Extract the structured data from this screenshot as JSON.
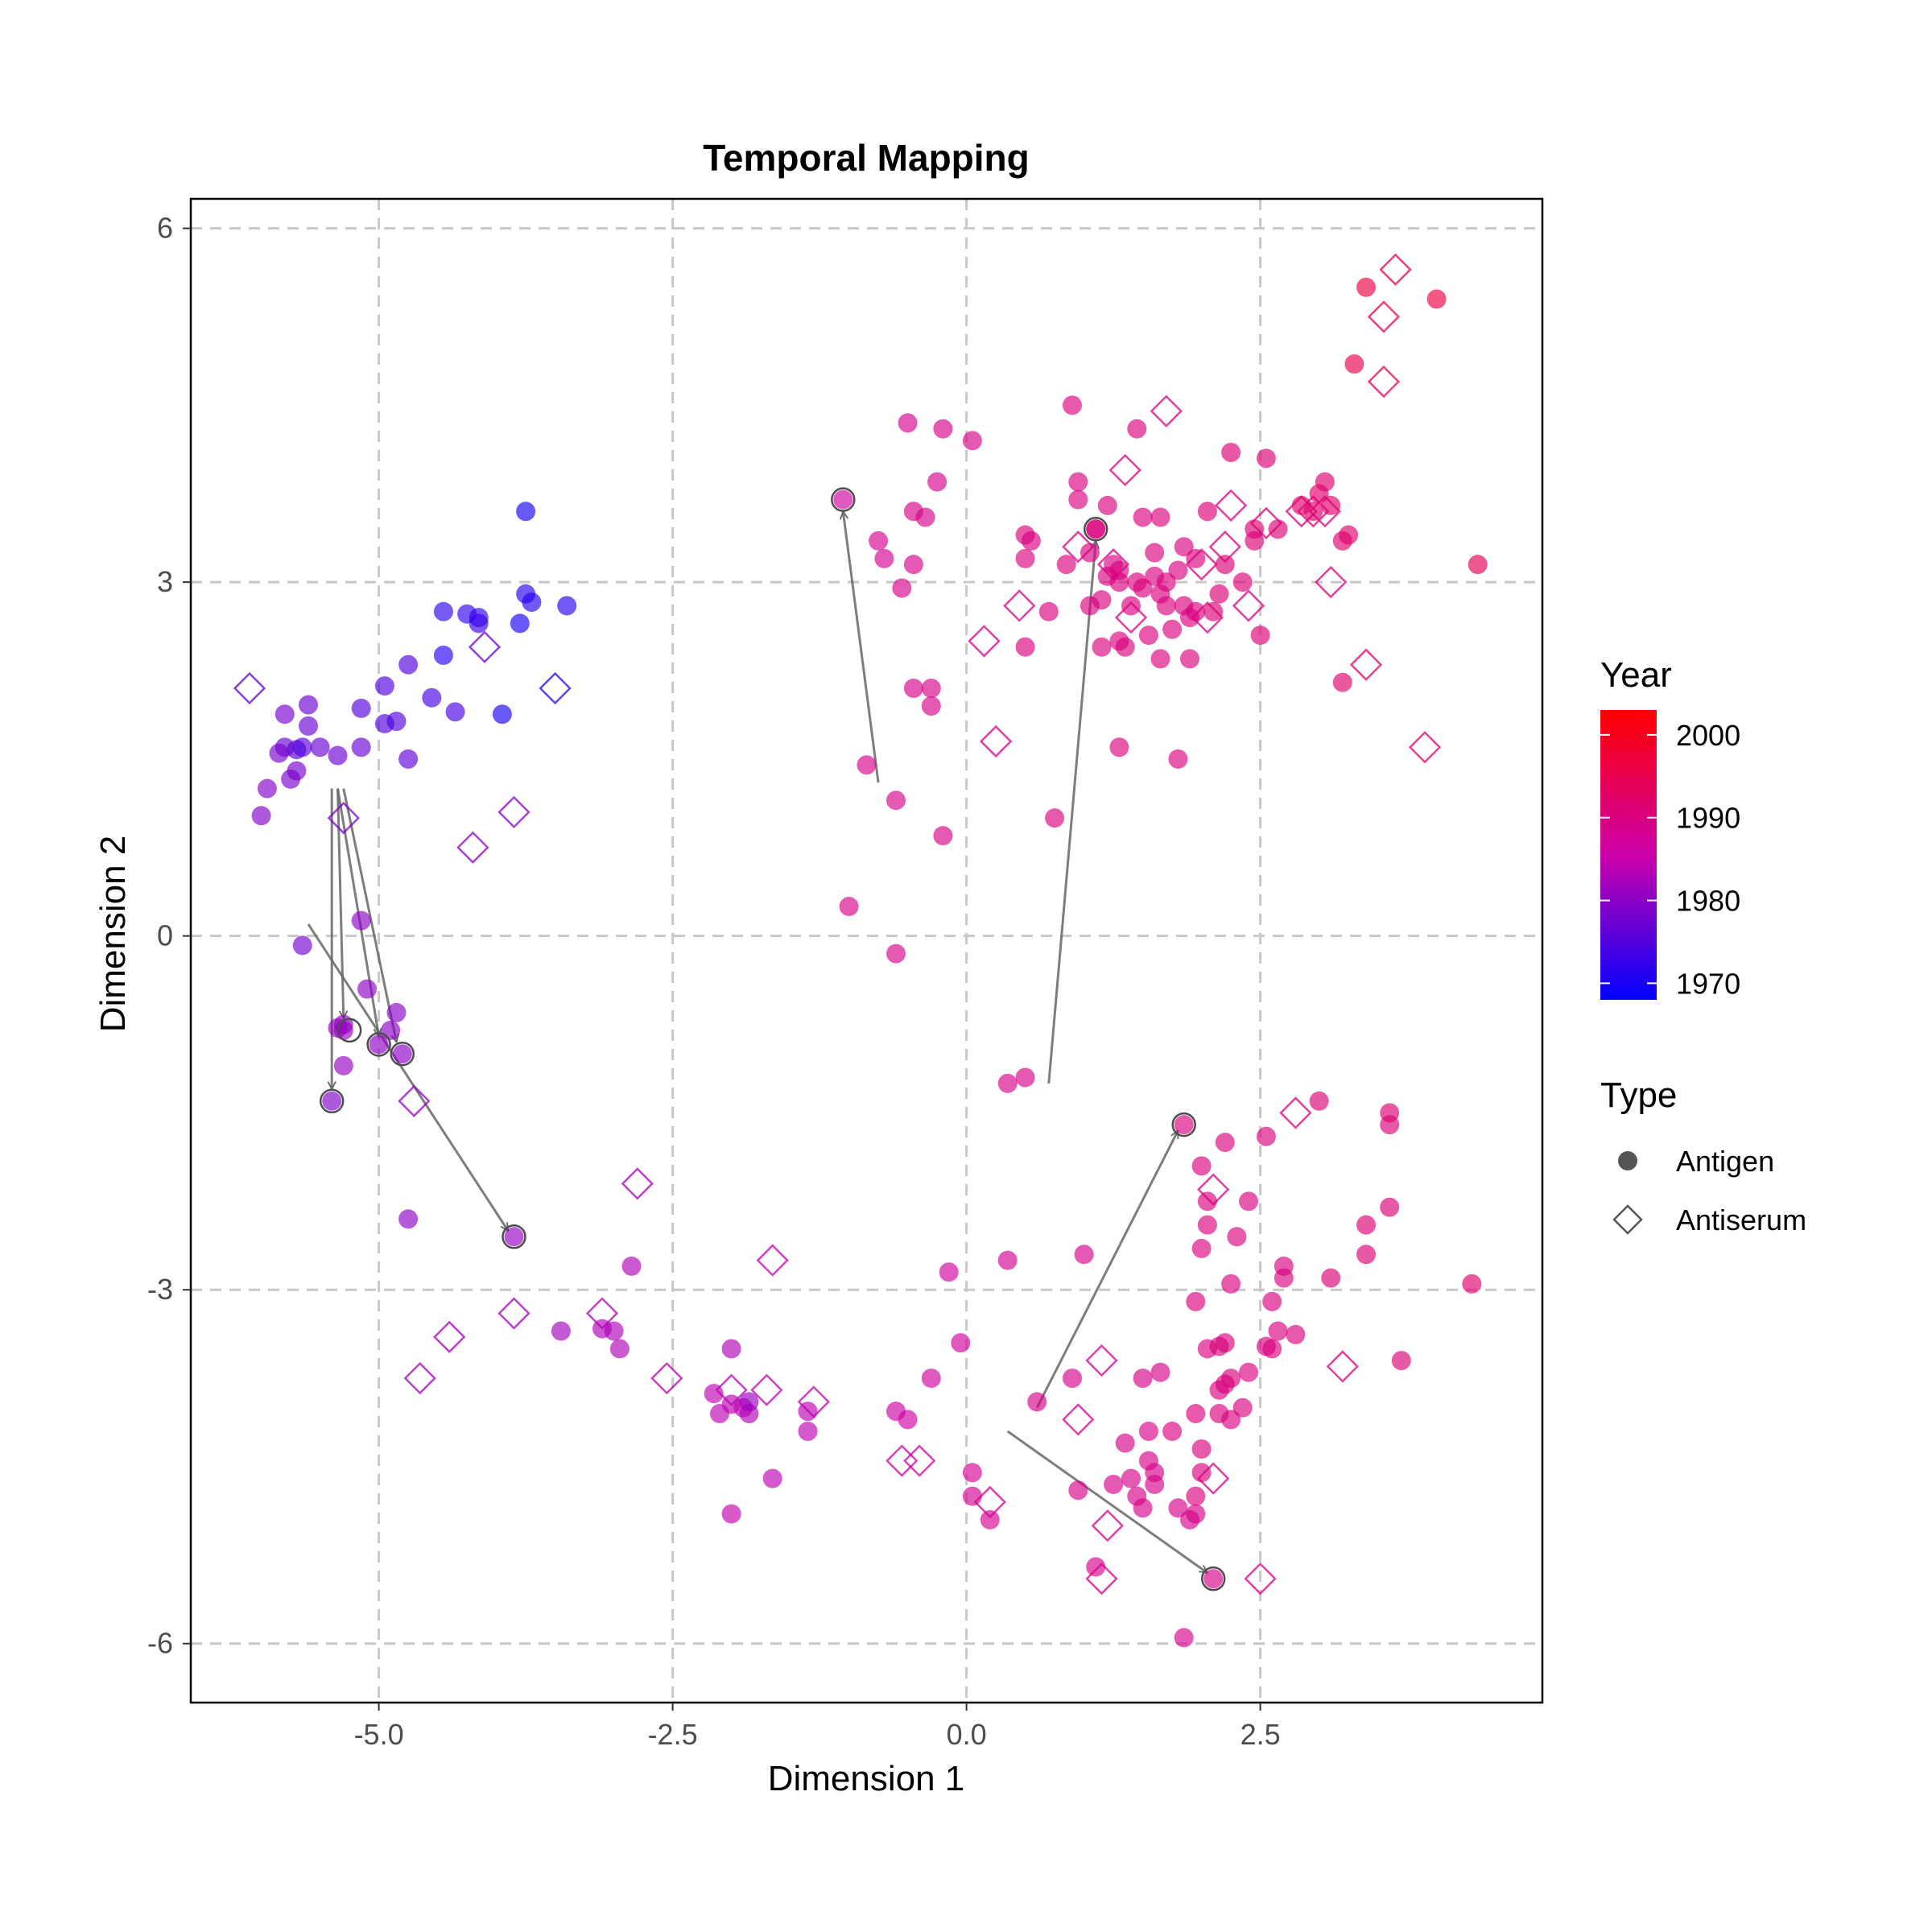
{
  "chart_data": {
    "type": "scatter",
    "title": "Temporal Mapping",
    "xlabel": "Dimension 1",
    "ylabel": "Dimension 2",
    "xlim": [
      -6.6,
      4.9
    ],
    "ylim": [
      -6.5,
      6.25
    ],
    "x_ticks": [
      -5.0,
      -2.5,
      0.0,
      2.5
    ],
    "x_tick_labels": [
      "-5.0",
      "-2.5",
      "0.0",
      "2.5"
    ],
    "y_ticks": [
      -6,
      -3,
      0,
      3,
      6
    ],
    "y_tick_labels": [
      "-6",
      "-3",
      "0",
      "3",
      "6"
    ],
    "grid": true,
    "grid_style": "dashed",
    "legend_position": "right",
    "color_legend": {
      "title": "Year",
      "min_year": 1968,
      "max_year": 2003,
      "ticks": [
        2000,
        1990,
        1980,
        1970
      ],
      "tick_labels": [
        "2000",
        "1990",
        "1980",
        "1970"
      ],
      "low_color": "#0000ff",
      "mid_color": "#cc00aa",
      "high_color": "#ff0000"
    },
    "shape_legend": {
      "title": "Type",
      "items": [
        {
          "label": "Antigen",
          "shape": "circle"
        },
        {
          "label": "Antiserum",
          "shape": "diamond"
        }
      ]
    },
    "antigens": [
      [
        -3.75,
        3.6,
        1970
      ],
      [
        -3.8,
        2.65,
        1970
      ],
      [
        -3.75,
        2.9,
        1971
      ],
      [
        -3.7,
        2.83,
        1971
      ],
      [
        -3.4,
        2.8,
        1971
      ],
      [
        -4.45,
        2.75,
        1972
      ],
      [
        -4.25,
        2.73,
        1972
      ],
      [
        -4.15,
        2.7,
        1972
      ],
      [
        -4.15,
        2.65,
        1973
      ],
      [
        -4.45,
        2.38,
        1971
      ],
      [
        -3.95,
        1.88,
        1970
      ],
      [
        -4.55,
        2.02,
        1974
      ],
      [
        -4.35,
        1.9,
        1974
      ],
      [
        -4.95,
        2.12,
        1975
      ],
      [
        -4.75,
        2.3,
        1975
      ],
      [
        -5.15,
        1.93,
        1975
      ],
      [
        -4.95,
        1.8,
        1975
      ],
      [
        -4.85,
        1.82,
        1975
      ],
      [
        -4.75,
        1.5,
        1976
      ],
      [
        -5.15,
        1.6,
        1977
      ],
      [
        -5.35,
        1.53,
        1977
      ],
      [
        -5.5,
        1.6,
        1977
      ],
      [
        -5.65,
        1.6,
        1976
      ],
      [
        -5.7,
        1.58,
        1975
      ],
      [
        -5.6,
        1.78,
        1977
      ],
      [
        -5.6,
        1.96,
        1977
      ],
      [
        -5.8,
        1.6,
        1977
      ],
      [
        -5.75,
        1.33,
        1978
      ],
      [
        -5.7,
        1.4,
        1978
      ],
      [
        -5.85,
        1.55,
        1978
      ],
      [
        -5.8,
        1.88,
        1978
      ],
      [
        -5.95,
        1.25,
        1979
      ],
      [
        -6.0,
        1.02,
        1979
      ],
      [
        -5.65,
        -0.08,
        1978
      ],
      [
        -5.15,
        0.13,
        1980
      ],
      [
        -5.1,
        -0.45,
        1980
      ],
      [
        -4.85,
        -0.65,
        1980
      ],
      [
        -4.9,
        -0.8,
        1980
      ],
      [
        -5.3,
        -0.75,
        1980
      ],
      [
        -5.3,
        -1.1,
        1981
      ],
      [
        -5.3,
        -0.8,
        1981
      ],
      [
        -5.35,
        -0.78,
        1981
      ],
      [
        -5.0,
        -0.92,
        1980
      ],
      [
        -4.8,
        -1.0,
        1980
      ],
      [
        -5.4,
        -1.4,
        1979
      ],
      [
        -4.75,
        -2.4,
        1980
      ],
      [
        -3.85,
        -2.55,
        1981
      ],
      [
        -3.45,
        -3.35,
        1982
      ],
      [
        -3.1,
        -3.33,
        1983
      ],
      [
        -3.0,
        -3.35,
        1983
      ],
      [
        -2.95,
        -3.5,
        1983
      ],
      [
        -2.85,
        -2.8,
        1983
      ],
      [
        -2.0,
        -3.5,
        1983
      ],
      [
        -2.15,
        -3.88,
        1984
      ],
      [
        -2.1,
        -4.05,
        1984
      ],
      [
        -2.0,
        -3.97,
        1984
      ],
      [
        -1.9,
        -4.0,
        1984
      ],
      [
        -1.85,
        -4.05,
        1983
      ],
      [
        -1.85,
        -3.95,
        1981
      ],
      [
        -1.35,
        -4.03,
        1984
      ],
      [
        -1.35,
        -4.2,
        1984
      ],
      [
        -1.65,
        -4.6,
        1984
      ],
      [
        -2.0,
        -4.9,
        1985
      ],
      [
        -0.6,
        -4.03,
        1986
      ],
      [
        -0.5,
        -4.1,
        1986
      ],
      [
        -0.3,
        -3.75,
        1987
      ],
      [
        -0.05,
        -3.45,
        1987
      ],
      [
        -0.15,
        -2.85,
        1987
      ],
      [
        0.05,
        -4.55,
        1988
      ],
      [
        0.05,
        -4.75,
        1988
      ],
      [
        0.2,
        -4.95,
        1988
      ],
      [
        0.35,
        -2.75,
        1988
      ],
      [
        0.6,
        -3.95,
        1989
      ],
      [
        1.0,
        -2.7,
        1989
      ],
      [
        0.9,
        -3.75,
        1989
      ],
      [
        0.95,
        -4.7,
        1989
      ],
      [
        1.1,
        -5.35,
        1989
      ],
      [
        1.25,
        -4.65,
        1989
      ],
      [
        1.35,
        -4.3,
        1989
      ],
      [
        1.4,
        -4.6,
        1989
      ],
      [
        1.45,
        -4.75,
        1989
      ],
      [
        1.5,
        -4.85,
        1989
      ],
      [
        1.55,
        -4.45,
        1989
      ],
      [
        1.55,
        -4.2,
        1989
      ],
      [
        1.6,
        -4.65,
        1989
      ],
      [
        1.6,
        -4.55,
        1989
      ],
      [
        1.5,
        -3.75,
        1989
      ],
      [
        1.65,
        -3.7,
        1989
      ],
      [
        1.8,
        -4.85,
        1989
      ],
      [
        1.9,
        -4.95,
        1989
      ],
      [
        1.95,
        -4.9,
        1989
      ],
      [
        1.75,
        -4.2,
        1990
      ],
      [
        1.95,
        -4.75,
        1990
      ],
      [
        2.0,
        -4.55,
        1990
      ],
      [
        2.0,
        -4.35,
        1990
      ],
      [
        1.95,
        -4.05,
        1990
      ],
      [
        1.95,
        -3.1,
        1990
      ],
      [
        2.0,
        -2.65,
        1990
      ],
      [
        2.05,
        -2.45,
        1990
      ],
      [
        2.05,
        -2.25,
        1990
      ],
      [
        2.0,
        -1.95,
        1990
      ],
      [
        2.05,
        -3.5,
        1990
      ],
      [
        2.15,
        -3.48,
        1990
      ],
      [
        2.2,
        -3.45,
        1990
      ],
      [
        2.15,
        -3.85,
        1990
      ],
      [
        2.2,
        -3.8,
        1990
      ],
      [
        2.25,
        -3.75,
        1990
      ],
      [
        2.15,
        -4.05,
        1990
      ],
      [
        2.25,
        -4.1,
        1990
      ],
      [
        2.35,
        -4.0,
        1990
      ],
      [
        2.4,
        -3.7,
        1990
      ],
      [
        2.25,
        -2.95,
        1990
      ],
      [
        2.3,
        -2.55,
        1990
      ],
      [
        2.4,
        -2.25,
        1990
      ],
      [
        2.2,
        -1.75,
        1990
      ],
      [
        2.55,
        -3.48,
        1990
      ],
      [
        2.6,
        -3.5,
        1990
      ],
      [
        2.6,
        -3.1,
        1990
      ],
      [
        2.65,
        -3.35,
        1990
      ],
      [
        2.7,
        -2.8,
        1990
      ],
      [
        2.7,
        -2.9,
        1990
      ],
      [
        2.8,
        -3.38,
        1990
      ],
      [
        2.55,
        -1.7,
        1990
      ],
      [
        3.0,
        -1.4,
        1991
      ],
      [
        3.1,
        -2.9,
        1991
      ],
      [
        3.4,
        -2.45,
        1991
      ],
      [
        3.4,
        -2.7,
        1991
      ],
      [
        3.6,
        -1.5,
        1991
      ],
      [
        3.6,
        -1.6,
        1991
      ],
      [
        3.6,
        -2.3,
        1991
      ],
      [
        3.7,
        -3.6,
        1991
      ],
      [
        4.3,
        -2.95,
        1992
      ],
      [
        1.85,
        -5.95,
        1989
      ],
      [
        2.1,
        -5.45,
        1989
      ],
      [
        1.85,
        -1.6,
        1990
      ],
      [
        -1.05,
        3.7,
        1987
      ],
      [
        -0.75,
        3.35,
        1988
      ],
      [
        -0.7,
        3.2,
        1988
      ],
      [
        -0.5,
        4.35,
        1988
      ],
      [
        -0.45,
        3.6,
        1989
      ],
      [
        -0.45,
        3.15,
        1989
      ],
      [
        -0.35,
        3.55,
        1989
      ],
      [
        -0.25,
        3.85,
        1989
      ],
      [
        -0.55,
        2.95,
        1989
      ],
      [
        -0.2,
        4.3,
        1989
      ],
      [
        -0.3,
        2.1,
        1989
      ],
      [
        -0.3,
        1.95,
        1989
      ],
      [
        -0.45,
        2.1,
        1989
      ],
      [
        -0.85,
        1.45,
        1989
      ],
      [
        -0.6,
        1.15,
        1989
      ],
      [
        -1.0,
        0.25,
        1989
      ],
      [
        -0.6,
        -0.15,
        1989
      ],
      [
        -0.2,
        0.85,
        1989
      ],
      [
        0.05,
        4.2,
        1989
      ],
      [
        0.35,
        -1.25,
        1989
      ],
      [
        0.5,
        -1.2,
        1989
      ],
      [
        0.5,
        3.4,
        1990
      ],
      [
        0.5,
        3.2,
        1990
      ],
      [
        0.55,
        3.35,
        1990
      ],
      [
        0.5,
        2.45,
        1990
      ],
      [
        0.7,
        2.75,
        1990
      ],
      [
        0.75,
        1.0,
        1990
      ],
      [
        0.85,
        3.15,
        1990
      ],
      [
        0.95,
        3.85,
        1990
      ],
      [
        0.95,
        3.7,
        1990
      ],
      [
        0.9,
        4.5,
        1990
      ],
      [
        1.05,
        3.25,
        1990
      ],
      [
        1.05,
        2.8,
        1990
      ],
      [
        1.1,
        3.45,
        1990
      ],
      [
        1.15,
        2.45,
        1990
      ],
      [
        1.15,
        2.85,
        1990
      ],
      [
        1.2,
        3.05,
        1990
      ],
      [
        1.25,
        3.15,
        1990
      ],
      [
        1.3,
        3.1,
        1990
      ],
      [
        1.3,
        3.0,
        1990
      ],
      [
        1.2,
        3.65,
        1990
      ],
      [
        1.3,
        2.5,
        1990
      ],
      [
        1.35,
        2.45,
        1990
      ],
      [
        1.4,
        2.8,
        1990
      ],
      [
        1.45,
        3.0,
        1990
      ],
      [
        1.5,
        2.95,
        1990
      ],
      [
        1.5,
        3.55,
        1990
      ],
      [
        1.45,
        4.3,
        1990
      ],
      [
        1.55,
        2.55,
        1990
      ],
      [
        1.6,
        3.25,
        1990
      ],
      [
        1.6,
        3.05,
        1990
      ],
      [
        1.65,
        2.9,
        1990
      ],
      [
        1.7,
        2.8,
        1990
      ],
      [
        1.7,
        3.0,
        1990
      ],
      [
        1.65,
        3.55,
        1990
      ],
      [
        1.65,
        2.35,
        1990
      ],
      [
        1.75,
        2.6,
        1990
      ],
      [
        1.8,
        3.1,
        1990
      ],
      [
        1.85,
        2.8,
        1990
      ],
      [
        1.85,
        3.3,
        1990
      ],
      [
        1.9,
        2.7,
        1990
      ],
      [
        1.95,
        2.75,
        1990
      ],
      [
        1.95,
        3.2,
        1990
      ],
      [
        1.9,
        2.35,
        1990
      ],
      [
        1.8,
        1.5,
        1990
      ],
      [
        1.3,
        1.6,
        1990
      ],
      [
        2.05,
        3.6,
        1991
      ],
      [
        2.1,
        2.75,
        1991
      ],
      [
        2.15,
        2.9,
        1991
      ],
      [
        2.2,
        3.15,
        1991
      ],
      [
        2.25,
        4.1,
        1991
      ],
      [
        2.35,
        3.0,
        1991
      ],
      [
        2.45,
        3.35,
        1991
      ],
      [
        2.45,
        3.45,
        1991
      ],
      [
        2.5,
        2.55,
        1991
      ],
      [
        2.55,
        4.05,
        1991
      ],
      [
        2.65,
        3.45,
        1991
      ],
      [
        2.85,
        3.65,
        1992
      ],
      [
        2.95,
        3.6,
        1992
      ],
      [
        3.0,
        3.75,
        1992
      ],
      [
        3.05,
        3.85,
        1992
      ],
      [
        3.1,
        3.65,
        1992
      ],
      [
        3.2,
        3.35,
        1992
      ],
      [
        3.25,
        3.4,
        1992
      ],
      [
        3.2,
        2.15,
        1992
      ],
      [
        3.3,
        4.85,
        1995
      ],
      [
        3.4,
        5.5,
        1996
      ],
      [
        4.0,
        5.4,
        1996
      ],
      [
        4.35,
        3.15,
        1994
      ],
      [
        1.1,
        3.45,
        1990
      ]
    ],
    "antisera": [
      [
        -6.1,
        2.1,
        1976
      ],
      [
        -4.1,
        2.45,
        1977
      ],
      [
        -3.5,
        2.1,
        1972
      ],
      [
        -5.3,
        1.0,
        1979
      ],
      [
        -4.2,
        0.75,
        1980
      ],
      [
        -3.85,
        1.05,
        1980
      ],
      [
        -4.7,
        -1.4,
        1981
      ],
      [
        -2.8,
        -2.1,
        1982
      ],
      [
        -3.85,
        -3.2,
        1982
      ],
      [
        -4.4,
        -3.4,
        1982
      ],
      [
        -4.65,
        -3.75,
        1982
      ],
      [
        -3.1,
        -3.2,
        1983
      ],
      [
        -2.55,
        -3.75,
        1984
      ],
      [
        -2.0,
        -3.85,
        1984
      ],
      [
        -1.65,
        -2.75,
        1985
      ],
      [
        -1.7,
        -3.85,
        1985
      ],
      [
        -1.3,
        -3.95,
        1985
      ],
      [
        -0.55,
        -4.45,
        1986
      ],
      [
        -0.4,
        -4.45,
        1986
      ],
      [
        0.2,
        -4.8,
        1988
      ],
      [
        0.95,
        -4.1,
        1988
      ],
      [
        1.15,
        -3.6,
        1988
      ],
      [
        1.2,
        -5.0,
        1989
      ],
      [
        1.15,
        -5.45,
        1989
      ],
      [
        2.1,
        -4.6,
        1989
      ],
      [
        2.1,
        -2.15,
        1989
      ],
      [
        2.5,
        -5.45,
        1989
      ],
      [
        2.8,
        -1.5,
        1990
      ],
      [
        3.2,
        -3.65,
        1990
      ],
      [
        0.15,
        2.5,
        1989
      ],
      [
        0.25,
        1.65,
        1989
      ],
      [
        0.45,
        2.8,
        1989
      ],
      [
        0.95,
        3.3,
        1989
      ],
      [
        1.25,
        3.15,
        1989
      ],
      [
        1.35,
        3.95,
        1990
      ],
      [
        1.4,
        2.7,
        1990
      ],
      [
        1.7,
        4.45,
        1990
      ],
      [
        2.0,
        3.15,
        1990
      ],
      [
        2.05,
        2.7,
        1990
      ],
      [
        2.2,
        3.3,
        1990
      ],
      [
        2.25,
        3.65,
        1990
      ],
      [
        2.4,
        2.8,
        1990
      ],
      [
        2.55,
        3.5,
        1991
      ],
      [
        2.85,
        3.6,
        1991
      ],
      [
        2.95,
        3.6,
        1991
      ],
      [
        3.05,
        3.6,
        1991
      ],
      [
        3.1,
        3.0,
        1991
      ],
      [
        3.4,
        2.3,
        1992
      ],
      [
        3.55,
        5.25,
        1995
      ],
      [
        3.55,
        4.7,
        1995
      ],
      [
        3.65,
        5.65,
        1996
      ],
      [
        3.9,
        1.6,
        1992
      ]
    ],
    "arrows": [
      [
        -0.75,
        1.3,
        -1.05,
        3.6
      ],
      [
        0.7,
        -1.25,
        1.1,
        3.35
      ],
      [
        0.6,
        -4.0,
        1.8,
        -1.65
      ],
      [
        0.35,
        -4.2,
        2.05,
        -5.4
      ],
      [
        -5.6,
        0.1,
        -3.9,
        -2.5
      ],
      [
        -5.4,
        1.25,
        -5.4,
        -1.3
      ],
      [
        -5.35,
        1.25,
        -5.3,
        -0.7
      ],
      [
        -5.35,
        1.25,
        -5.0,
        -0.85
      ],
      [
        -5.3,
        1.25,
        -4.85,
        -0.9
      ]
    ],
    "highlighted_antigens": [
      [
        -1.05,
        3.7
      ],
      [
        1.1,
        3.45
      ],
      [
        1.85,
        -1.6
      ],
      [
        2.1,
        -5.45
      ],
      [
        -5.4,
        -1.4
      ],
      [
        -5.25,
        -0.8
      ],
      [
        -5.0,
        -0.92
      ],
      [
        -4.8,
        -1.0
      ],
      [
        -3.85,
        -2.55
      ]
    ]
  }
}
